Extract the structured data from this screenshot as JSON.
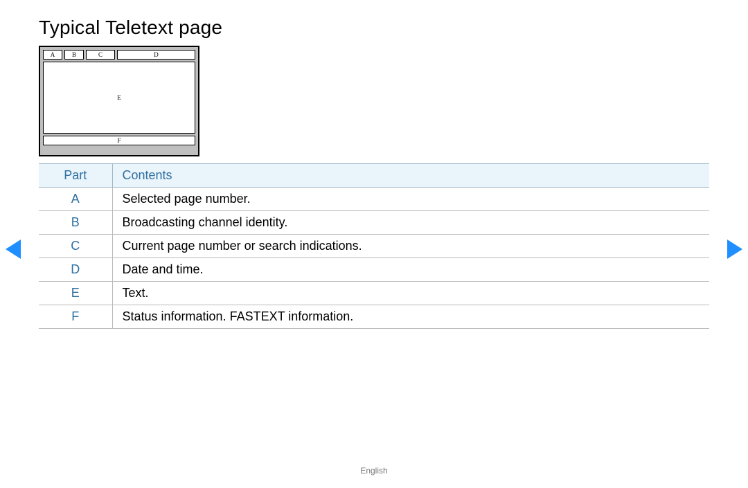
{
  "title": "Typical Teletext page",
  "footer": "English",
  "diagram": {
    "labels": {
      "a": "A",
      "b": "B",
      "c": "C",
      "d": "D",
      "e": "E",
      "f": "F"
    }
  },
  "table": {
    "header": {
      "part": "Part",
      "contents": "Contents"
    },
    "header_bg": "#eaf4fb",
    "header_text_color": "#2f6f9f",
    "part_label_color": "#2f6f9f",
    "row_border_color": "#b9b9b9",
    "rows": [
      {
        "part": "A",
        "contents": "Selected page number."
      },
      {
        "part": "B",
        "contents": "Broadcasting channel identity."
      },
      {
        "part": "C",
        "contents": "Current page number or search indications."
      },
      {
        "part": "D",
        "contents": "Date and time."
      },
      {
        "part": "E",
        "contents": "Text."
      },
      {
        "part": "F",
        "contents": "Status information. FASTEXT information."
      }
    ]
  },
  "nav_arrow_color": "#1f8fff",
  "background_color": "#ffffff"
}
